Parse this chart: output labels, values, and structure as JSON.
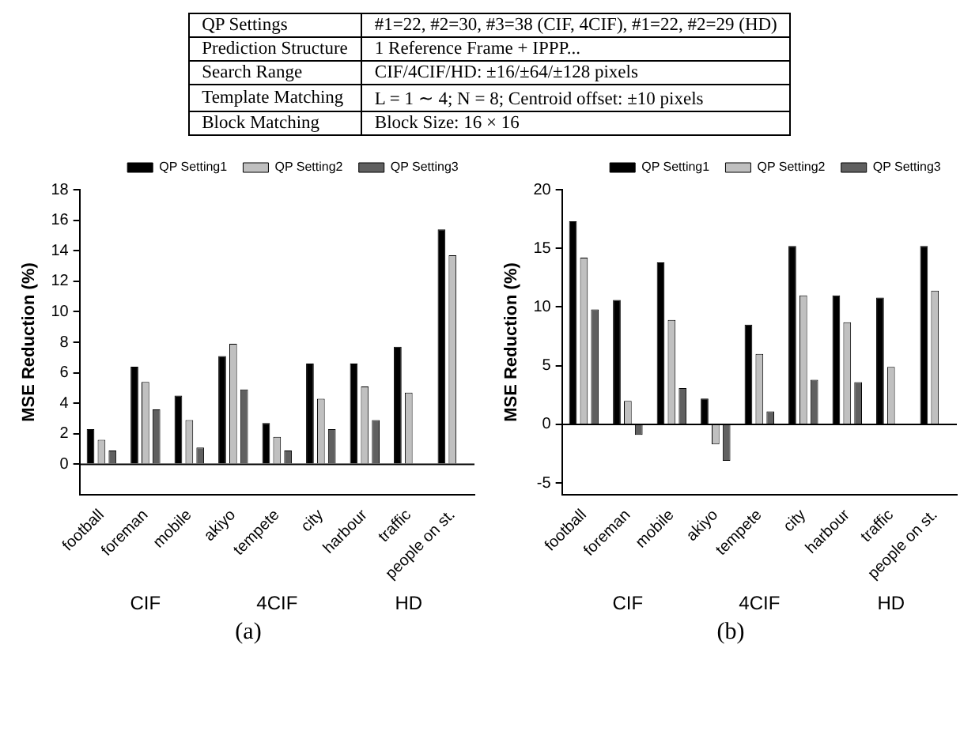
{
  "chart_data": [
    {
      "type": "other",
      "annotations": [
        "QP Settings",
        "#1=22, #2=30, #3=38 (CIF, 4CIF), #1=22, #2=29 (HD)",
        "Prediction Structure",
        "1 Reference Frame + IPPP...",
        "Search Range",
        "CIF/4CIF/HD: ±16/±64/±128 pixels",
        "Template Matching",
        "L = 1 ∼ 4; N = 8; Centroid offset: ±10 pixels",
        "Block Matching",
        "Block Size: 16 × 16"
      ]
    },
    {
      "type": "bar",
      "subtitle": "(a)",
      "ylabel": "MSE Reduction (%)",
      "categories": [
        "football",
        "foreman",
        "mobile",
        "akiyo",
        "tempete",
        "city",
        "harbour",
        "traffic",
        "people on st."
      ],
      "series": [
        {
          "name": "QP Setting1",
          "color": "#000000",
          "values": [
            2.3,
            6.4,
            4.5,
            7.1,
            2.7,
            6.6,
            6.6,
            7.7,
            15.4
          ]
        },
        {
          "name": "QP Setting2",
          "color": "#c0c0c0",
          "values": [
            1.6,
            5.4,
            2.9,
            7.9,
            1.8,
            4.3,
            5.1,
            4.7,
            13.7
          ]
        },
        {
          "name": "QP Setting3",
          "color": "#606060",
          "values": [
            0.9,
            3.6,
            1.1,
            4.9,
            0.9,
            2.3,
            2.9,
            null,
            null
          ]
        }
      ],
      "ylim": [
        -2,
        18
      ],
      "yticks": [
        0,
        2,
        4,
        6,
        8,
        10,
        12,
        14,
        16,
        18
      ],
      "grid": false,
      "legend": "top right",
      "ref_lines": [
        {
          "axis": "y",
          "value": 0,
          "color": "#000000"
        }
      ],
      "annotations": [
        "CIF",
        "4CIF",
        "HD"
      ]
    },
    {
      "type": "bar",
      "subtitle": "(b)",
      "ylabel": "MSE Reduction (%)",
      "categories": [
        "football",
        "foreman",
        "mobile",
        "akiyo",
        "tempete",
        "city",
        "harbour",
        "traffic",
        "people on st."
      ],
      "series": [
        {
          "name": "QP Setting1",
          "color": "#000000",
          "values": [
            17.3,
            10.6,
            13.8,
            2.2,
            8.5,
            15.2,
            11.0,
            10.8,
            15.2
          ]
        },
        {
          "name": "QP Setting2",
          "color": "#c0c0c0",
          "values": [
            14.2,
            2.0,
            8.9,
            -1.7,
            6.0,
            11.0,
            8.7,
            4.9,
            11.4
          ]
        },
        {
          "name": "QP Setting3",
          "color": "#606060",
          "values": [
            9.8,
            -0.9,
            3.1,
            -3.1,
            1.1,
            3.8,
            3.6,
            null,
            null
          ]
        }
      ],
      "ylim": [
        -6,
        20
      ],
      "yticks": [
        -5,
        0,
        5,
        10,
        15,
        20
      ],
      "grid": false,
      "legend": "top right",
      "ref_lines": [
        {
          "axis": "y",
          "value": 0,
          "color": "#000000"
        }
      ],
      "annotations": [
        "CIF",
        "4CIF",
        "HD"
      ]
    }
  ]
}
